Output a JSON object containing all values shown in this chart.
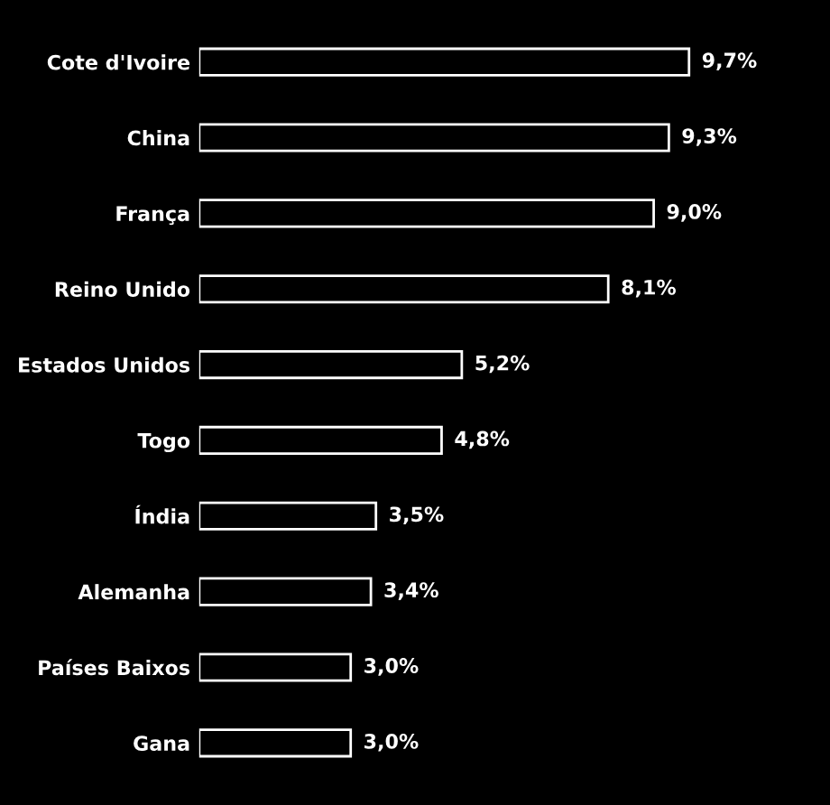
{
  "chart_data": {
    "type": "bar",
    "orientation": "horizontal",
    "categories": [
      "Cote d'Ivoire",
      "China",
      "França",
      "Reino Unido",
      "Estados Unidos",
      "Togo",
      "Índia",
      "Alemanha",
      "Países Baixos",
      "Gana"
    ],
    "values": [
      9.7,
      9.3,
      9.0,
      8.1,
      5.2,
      4.8,
      3.5,
      3.4,
      3.0,
      3.0
    ],
    "value_labels": [
      "9,7%",
      "9,3%",
      "9,0%",
      "8,1%",
      "5,2%",
      "4,8%",
      "3,5%",
      "3,4%",
      "3,0%",
      "3,0%"
    ],
    "color": "#000000",
    "grid": false,
    "legend": false
  }
}
